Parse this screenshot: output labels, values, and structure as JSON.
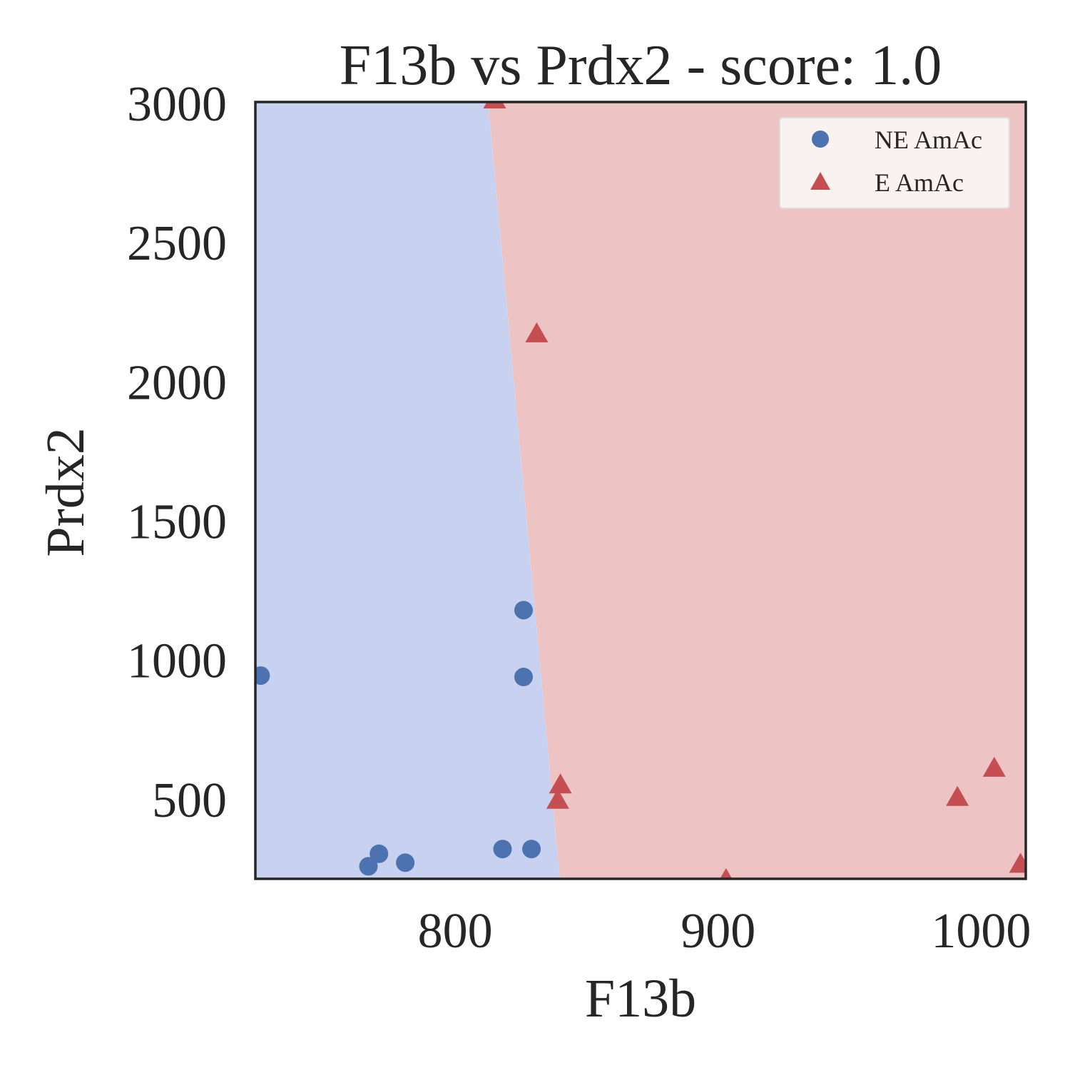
{
  "chart_data": {
    "type": "scatter",
    "title": "F13b vs Prdx2 - score: 1.0",
    "xlabel": "F13b",
    "ylabel": "Prdx2",
    "xlim": [
      724,
      1017
    ],
    "ylim": [
      215,
      3005
    ],
    "xticks": [
      800,
      900,
      1000
    ],
    "xtick_labels": [
      "800",
      "900",
      "1000"
    ],
    "yticks": [
      500,
      1000,
      1500,
      2000,
      2500,
      3000
    ],
    "ytick_labels": [
      "500",
      "1000",
      "1500",
      "2000",
      "2500",
      "3000"
    ],
    "grid": false,
    "legend_position": "top-right",
    "regions": {
      "boundary_line": [
        [
          812.5,
          3005
        ],
        [
          839.8,
          215
        ]
      ],
      "left_label": "NE AmAc",
      "right_label": "E AmAc",
      "left_color": "#c8d2f0",
      "right_color": "#edc4c3"
    },
    "series": [
      {
        "name": "NE AmAc",
        "marker": "circle",
        "color": "#4c72b0",
        "points": [
          {
            "x": 726,
            "y": 945
          },
          {
            "x": 767,
            "y": 260
          },
          {
            "x": 771,
            "y": 305
          },
          {
            "x": 781,
            "y": 273
          },
          {
            "x": 818,
            "y": 322
          },
          {
            "x": 826,
            "y": 1180
          },
          {
            "x": 826,
            "y": 940
          },
          {
            "x": 829,
            "y": 322
          }
        ]
      },
      {
        "name": "E AmAc",
        "marker": "triangle",
        "color": "#c44e52",
        "points": [
          {
            "x": 815,
            "y": 3010
          },
          {
            "x": 831,
            "y": 2170
          },
          {
            "x": 839,
            "y": 495
          },
          {
            "x": 840,
            "y": 550
          },
          {
            "x": 903,
            "y": 210
          },
          {
            "x": 991,
            "y": 505
          },
          {
            "x": 1005,
            "y": 610
          },
          {
            "x": 1015,
            "y": 265
          }
        ]
      }
    ]
  }
}
